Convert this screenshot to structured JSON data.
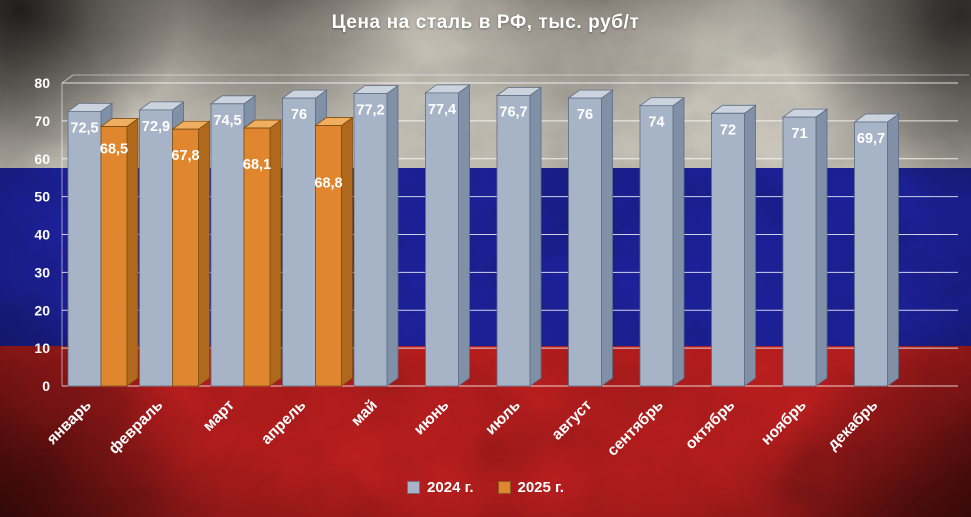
{
  "chart_data": {
    "type": "bar",
    "title": "Цена на сталь в РФ, тыс. руб/т",
    "categories": [
      "январь",
      "февраль",
      "март",
      "апрель",
      "май",
      "июнь",
      "июль",
      "август",
      "сентябрь",
      "октябрь",
      "ноябрь",
      "декабрь"
    ],
    "series": [
      {
        "name": "2024 г.",
        "color": "#a7b4c7",
        "values": [
          72.5,
          72.9,
          74.5,
          76,
          77.2,
          77.4,
          76.7,
          76,
          74,
          72,
          71,
          69.7
        ],
        "labels": [
          "72,5",
          "72,9",
          "74,5",
          "76",
          "77,2",
          "77,4",
          "76,7",
          "76",
          "74",
          "72",
          "71",
          "69,7"
        ]
      },
      {
        "name": "2025 г.",
        "color": "#e0862e",
        "values": [
          68.5,
          67.8,
          68.1,
          68.8,
          null,
          null,
          null,
          null,
          null,
          null,
          null,
          null
        ],
        "labels": [
          "68,5",
          "67,8",
          "68,1",
          "68,8"
        ]
      }
    ],
    "ylim": [
      0,
      80
    ],
    "yticks": [
      0,
      10,
      20,
      30,
      40,
      50,
      60,
      70,
      80
    ],
    "grid": true,
    "legend_position": "bottom",
    "bar_style": "3d",
    "units": "тыс. руб/т"
  },
  "colors": {
    "flag_white": "#d7d3c8",
    "flag_blue": "#1e23a5",
    "flag_red": "#c92020",
    "gridline": "#ffffff",
    "text": "#ffffff",
    "series_styles": [
      {
        "front": "#a7b4c7",
        "top": "#cbd3de",
        "side": "#8090a7",
        "stroke": "#5e6c83"
      },
      {
        "front": "#e0862e",
        "top": "#efae60",
        "side": "#b0691c",
        "stroke": "#7c4e12"
      }
    ]
  }
}
